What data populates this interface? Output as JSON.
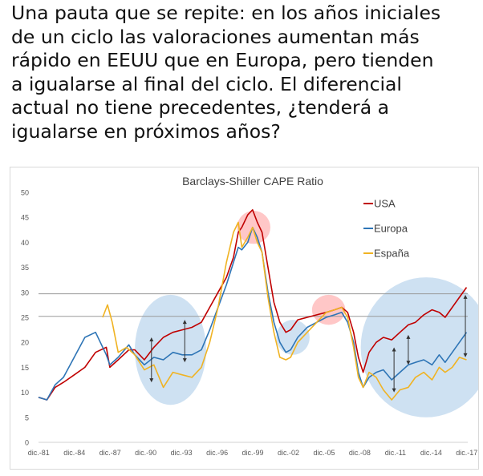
{
  "headline": {
    "lines": [
      "Una pauta que se repite: en los años iniciales",
      "de un ciclo las valoraciones aumentan más",
      "rápido en EEUU que en Europa, pero tienden",
      "a igualarse al final del ciclo. El diferencial",
      "actual no tiene precedentes, ¿tenderá a",
      "igualarse en próximos años?"
    ]
  },
  "chart_data": {
    "type": "line",
    "title": "Barclays-Shiller CAPE Ratio",
    "xlabel": "",
    "ylabel": "",
    "ylim": [
      0,
      50
    ],
    "xlim": [
      1981.9,
      2018.0
    ],
    "yticks": [
      0,
      5,
      10,
      15,
      20,
      25,
      30,
      35,
      40,
      45,
      50
    ],
    "xticks": [
      {
        "x": 1981.92,
        "label": "dic.-81"
      },
      {
        "x": 1984.92,
        "label": "dic.-84"
      },
      {
        "x": 1987.92,
        "label": "dic.-87"
      },
      {
        "x": 1990.92,
        "label": "dic.-90"
      },
      {
        "x": 1993.92,
        "label": "dic.-93"
      },
      {
        "x": 1996.92,
        "label": "dic.-96"
      },
      {
        "x": 1999.92,
        "label": "dic.-99"
      },
      {
        "x": 2002.92,
        "label": "dic.-02"
      },
      {
        "x": 2005.92,
        "label": "dic.-05"
      },
      {
        "x": 2008.92,
        "label": "dic.-08"
      },
      {
        "x": 2011.92,
        "label": "dic.-11"
      },
      {
        "x": 2014.92,
        "label": "dic.-14"
      },
      {
        "x": 2017.92,
        "label": "dic.-17"
      }
    ],
    "grid": false,
    "reference_lines": [
      29.7,
      25.2
    ],
    "legend_position": "top-right",
    "series": [
      {
        "name": "USA",
        "color": "#c00000",
        "x": [
          1981.9,
          1982.6,
          1983.3,
          1984.0,
          1984.9,
          1985.8,
          1986.7,
          1987.6,
          1987.9,
          1988.6,
          1989.5,
          1990.0,
          1990.8,
          1991.6,
          1992.4,
          1993.2,
          1994.0,
          1994.8,
          1995.6,
          1996.3,
          1997.0,
          1997.7,
          1998.3,
          1998.7,
          1999.0,
          1999.5,
          1999.9,
          2000.3,
          2000.7,
          2001.2,
          2001.7,
          2002.2,
          2002.7,
          2003.1,
          2003.7,
          2004.5,
          2005.3,
          2006.1,
          2006.8,
          2007.4,
          2007.9,
          2008.4,
          2008.8,
          2009.2,
          2009.7,
          2010.3,
          2010.9,
          2011.6,
          2012.3,
          2013.0,
          2013.6,
          2014.3,
          2015.0,
          2015.6,
          2016.1,
          2016.7,
          2017.3,
          2017.9
        ],
        "values": [
          9.0,
          8.5,
          11.0,
          12.0,
          13.5,
          15.0,
          18.0,
          19.0,
          15.0,
          16.5,
          18.5,
          18.5,
          16.5,
          19.0,
          21.0,
          22.0,
          22.5,
          23.0,
          24.0,
          27.0,
          30.0,
          33.0,
          37.0,
          42.0,
          43.0,
          45.5,
          46.5,
          44.0,
          42.0,
          35.0,
          28.0,
          24.0,
          22.0,
          22.5,
          24.5,
          25.0,
          25.5,
          26.0,
          26.5,
          27.0,
          26.0,
          22.0,
          17.0,
          14.0,
          18.0,
          20.0,
          21.0,
          20.5,
          22.0,
          23.5,
          24.0,
          25.5,
          26.5,
          26.0,
          25.0,
          27.0,
          29.0,
          31.0
        ]
      },
      {
        "name": "Europa",
        "color": "#2e75b6",
        "x": [
          1981.9,
          1982.6,
          1983.3,
          1984.0,
          1984.9,
          1985.8,
          1986.7,
          1987.6,
          1987.9,
          1988.6,
          1989.5,
          1990.0,
          1990.8,
          1991.6,
          1992.4,
          1993.2,
          1994.0,
          1994.8,
          1995.6,
          1996.3,
          1997.0,
          1997.7,
          1998.3,
          1998.7,
          1999.0,
          1999.5,
          1999.9,
          2000.3,
          2000.7,
          2001.2,
          2001.7,
          2002.2,
          2002.7,
          2003.1,
          2003.7,
          2004.5,
          2005.3,
          2006.1,
          2006.8,
          2007.4,
          2007.9,
          2008.4,
          2008.8,
          2009.2,
          2009.7,
          2010.3,
          2010.9,
          2011.6,
          2012.3,
          2013.0,
          2013.6,
          2014.3,
          2015.0,
          2015.6,
          2016.1,
          2016.7,
          2017.3,
          2017.9
        ],
        "values": [
          9.0,
          8.5,
          11.5,
          13.0,
          17.0,
          21.0,
          22.0,
          17.5,
          15.5,
          17.0,
          19.5,
          17.5,
          15.5,
          17.0,
          16.5,
          18.0,
          17.5,
          17.5,
          18.5,
          22.5,
          27.0,
          31.5,
          36.0,
          39.0,
          38.5,
          40.0,
          43.0,
          41.0,
          38.0,
          30.0,
          24.0,
          20.0,
          18.0,
          18.5,
          21.0,
          23.0,
          24.0,
          25.0,
          25.5,
          26.0,
          24.0,
          20.0,
          14.0,
          11.0,
          13.0,
          14.0,
          14.5,
          12.5,
          14.0,
          15.5,
          16.0,
          16.5,
          15.5,
          17.5,
          16.0,
          18.0,
          20.0,
          22.0
        ]
      },
      {
        "name": "España",
        "color": "#f0b323",
        "x": [
          1987.3,
          1987.7,
          1988.1,
          1988.6,
          1989.3,
          1990.0,
          1990.8,
          1991.6,
          1992.4,
          1993.2,
          1994.0,
          1994.8,
          1995.6,
          1996.3,
          1997.0,
          1997.7,
          1998.3,
          1998.7,
          1999.0,
          1999.5,
          1999.9,
          2000.3,
          2000.7,
          2001.2,
          2001.7,
          2002.2,
          2002.7,
          2003.1,
          2003.7,
          2004.5,
          2005.3,
          2006.1,
          2006.8,
          2007.4,
          2007.9,
          2008.4,
          2008.8,
          2009.2,
          2009.7,
          2010.3,
          2010.9,
          2011.6,
          2012.3,
          2013.0,
          2013.6,
          2014.3,
          2015.0,
          2015.6,
          2016.1,
          2016.7,
          2017.3,
          2017.9
        ],
        "values": [
          25.0,
          27.5,
          24.0,
          18.0,
          19.0,
          17.5,
          14.5,
          15.5,
          11.0,
          14.0,
          13.5,
          13.0,
          15.0,
          20.0,
          27.0,
          36.0,
          42.0,
          44.0,
          39.0,
          41.0,
          43.0,
          40.0,
          38.0,
          29.0,
          22.0,
          17.0,
          16.5,
          17.0,
          20.0,
          22.0,
          24.0,
          26.0,
          26.5,
          27.0,
          25.0,
          19.0,
          13.0,
          11.0,
          14.0,
          13.0,
          10.5,
          8.5,
          10.5,
          11.0,
          13.0,
          14.0,
          12.5,
          15.0,
          14.0,
          15.0,
          17.0,
          16.5
        ]
      }
    ],
    "annotations": {
      "highlight_circles": [
        {
          "cx": 1993.0,
          "cy": 18.5,
          "rx": 3.0,
          "ry": 11.0,
          "color": "#9dc3e6"
        },
        {
          "cx": 2000.0,
          "cy": 43.0,
          "rx": 1.4,
          "ry": 3.3,
          "color": "#ff8f8f"
        },
        {
          "cx": 2003.3,
          "cy": 21.0,
          "rx": 1.4,
          "ry": 3.5,
          "color": "#9dc3e6"
        },
        {
          "cx": 2006.3,
          "cy": 26.5,
          "rx": 1.4,
          "ry": 3.0,
          "color": "#ff8f8f"
        },
        {
          "cx": 2014.5,
          "cy": 19.0,
          "rx": 5.5,
          "ry": 14.0,
          "color": "#9dc3e6"
        }
      ],
      "gap_arrows": [
        {
          "x": 1991.4,
          "y1": 21.0,
          "y2": 12.0
        },
        {
          "x": 1994.2,
          "y1": 24.5,
          "y2": 16.0
        },
        {
          "x": 2011.8,
          "y1": 19.0,
          "y2": 10.0
        },
        {
          "x": 2013.0,
          "y1": 21.5,
          "y2": 15.5
        },
        {
          "x": 2017.8,
          "y1": 29.5,
          "y2": 17.0
        }
      ]
    }
  }
}
